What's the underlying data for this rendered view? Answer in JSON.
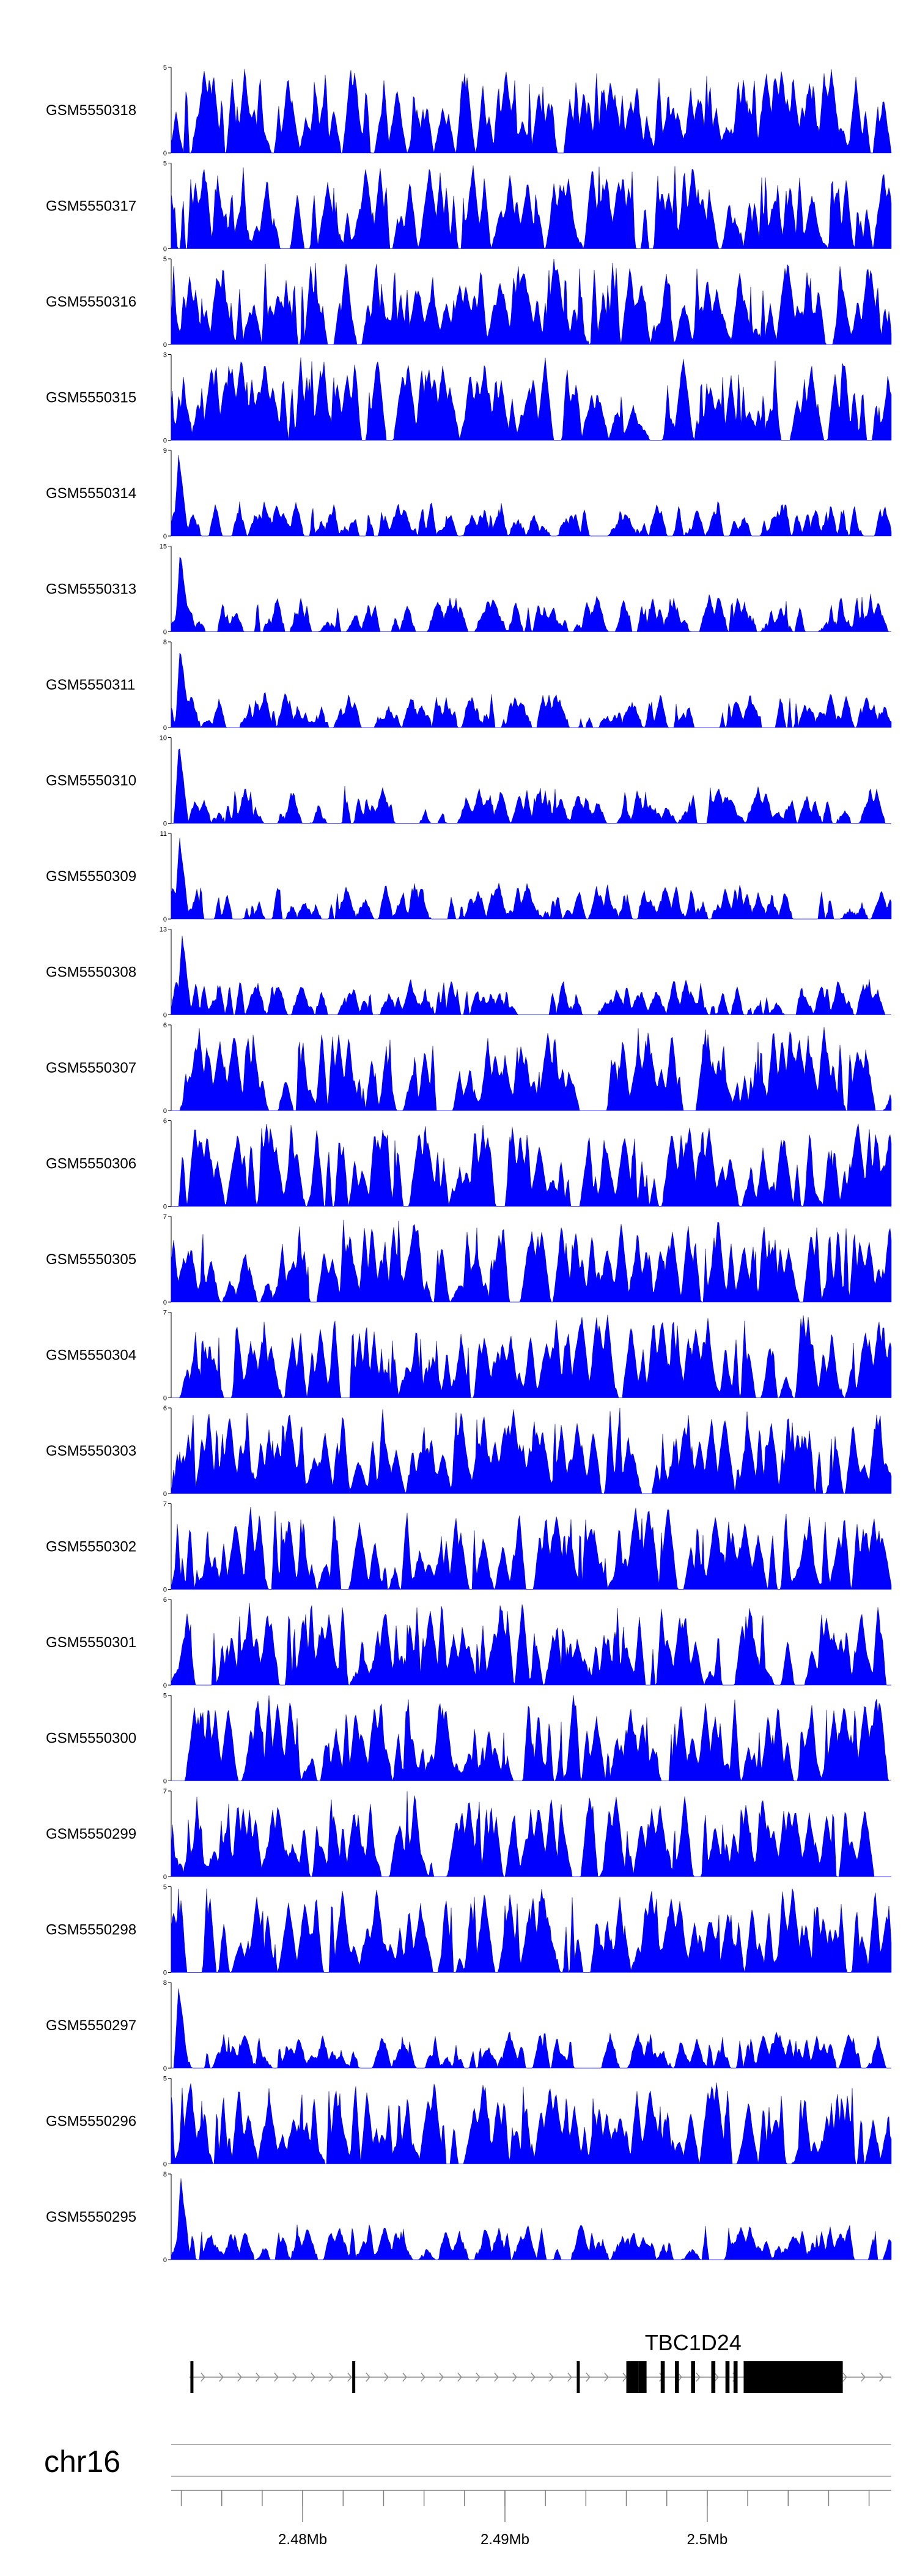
{
  "chart_data": {
    "type": "area",
    "title": "",
    "xlabel": "",
    "ylabel": "",
    "xlim": [
      2.4735,
      2.5091
    ],
    "x_unit": "Mb",
    "series_color": "#0000ff",
    "series": [
      {
        "name": "GSM5550318",
        "ymax": 5,
        "seed": 318
      },
      {
        "name": "GSM5550317",
        "ymax": 5,
        "seed": 317
      },
      {
        "name": "GSM5550316",
        "ymax": 5,
        "seed": 316
      },
      {
        "name": "GSM5550315",
        "ymax": 3,
        "seed": 315
      },
      {
        "name": "GSM5550314",
        "ymax": 9,
        "seed": 314
      },
      {
        "name": "GSM5550313",
        "ymax": 15,
        "seed": 313
      },
      {
        "name": "GSM5550311",
        "ymax": 8,
        "seed": 311
      },
      {
        "name": "GSM5550310",
        "ymax": 10,
        "seed": 310
      },
      {
        "name": "GSM5550309",
        "ymax": 11,
        "seed": 309
      },
      {
        "name": "GSM5550308",
        "ymax": 13,
        "seed": 308
      },
      {
        "name": "GSM5550307",
        "ymax": 6,
        "seed": 307
      },
      {
        "name": "GSM5550306",
        "ymax": 6,
        "seed": 306
      },
      {
        "name": "GSM5550305",
        "ymax": 7,
        "seed": 305
      },
      {
        "name": "GSM5550304",
        "ymax": 7,
        "seed": 304
      },
      {
        "name": "GSM5550303",
        "ymax": 6,
        "seed": 303
      },
      {
        "name": "GSM5550302",
        "ymax": 7,
        "seed": 302
      },
      {
        "name": "GSM5550301",
        "ymax": 6,
        "seed": 301
      },
      {
        "name": "GSM5550300",
        "ymax": 5,
        "seed": 300
      },
      {
        "name": "GSM5550299",
        "ymax": 7,
        "seed": 299
      },
      {
        "name": "GSM5550298",
        "ymax": 5,
        "seed": 298
      },
      {
        "name": "GSM5550297",
        "ymax": 8,
        "seed": 297
      },
      {
        "name": "GSM5550296",
        "ymax": 5,
        "seed": 296
      },
      {
        "name": "GSM5550295",
        "ymax": 8,
        "seed": 295
      }
    ],
    "ymin_label": "0",
    "gene": {
      "name": "TBC1D24",
      "strand": "+",
      "start": 2.4744,
      "end": 2.5091,
      "exons": [
        [
          2.47445,
          2.4746
        ],
        [
          2.48245,
          2.4826
        ],
        [
          2.49355,
          2.4937
        ],
        [
          2.496,
          2.4966
        ],
        [
          2.4966,
          2.497
        ],
        [
          2.4977,
          2.4979
        ],
        [
          2.4984,
          2.4986
        ],
        [
          2.4992,
          2.4994
        ],
        [
          2.5002,
          2.5004
        ],
        [
          2.5009,
          2.5011
        ],
        [
          2.5013,
          2.5015
        ],
        [
          2.5018,
          2.5067
        ]
      ]
    },
    "chromosome": "chr16",
    "axis_ticks": [
      {
        "value": 2.48,
        "label": "2.48Mb"
      },
      {
        "value": 2.49,
        "label": "2.49Mb"
      },
      {
        "value": 2.5,
        "label": "2.5Mb"
      }
    ],
    "minor_tick_step": 0.002
  }
}
